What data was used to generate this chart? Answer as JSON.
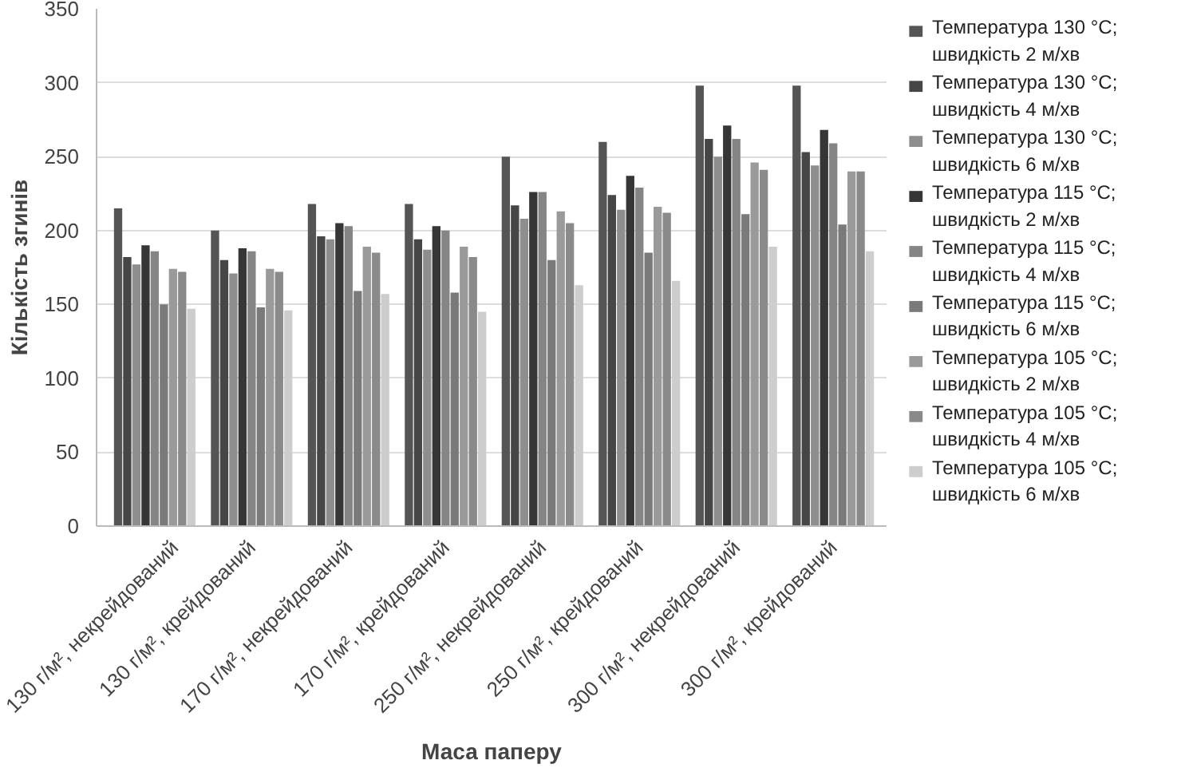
{
  "chart_data": {
    "type": "bar",
    "xlabel": "Маса паперу",
    "ylabel": "Кількість згинів",
    "categories": [
      "130 г/м², некрейдований",
      "130 г/м², крейдований",
      "170 г/м², некрейдований",
      "170 г/м², крейдований",
      "250 г/м², некрейдований",
      "250 г/м², крейдований",
      "300 г/м², некрейдований",
      "300 г/м², крейдований"
    ],
    "series": [
      {
        "name": "Температура 130 °C;\nшвидкість  2 м/хв",
        "color": "#555555",
        "values": [
          215,
          200,
          218,
          218,
          250,
          260,
          298,
          298
        ]
      },
      {
        "name": "Температура 130 °C;\nшвидкість  4 м/хв",
        "color": "#464646",
        "values": [
          182,
          180,
          196,
          194,
          217,
          224,
          262,
          253
        ]
      },
      {
        "name": "Температура 130 °C;\nшвидкість 6 м/хв",
        "color": "#8e8e8e",
        "values": [
          177,
          171,
          194,
          187,
          208,
          214,
          250,
          244
        ]
      },
      {
        "name": "Температура 115 °C;\nшвидкість  2 м/хв",
        "color": "#363636",
        "values": [
          190,
          188,
          205,
          203,
          226,
          237,
          271,
          268
        ]
      },
      {
        "name": "Температура 115 °C;\nшвидкість  4 м/хв",
        "color": "#858585",
        "values": [
          186,
          186,
          203,
          200,
          226,
          229,
          262,
          259
        ]
      },
      {
        "name": "Температура 115 °C;\nшвидкість 6 м/хв",
        "color": "#7a7a7a",
        "values": [
          150,
          148,
          159,
          158,
          180,
          185,
          211,
          204
        ]
      },
      {
        "name": "Температура 105 °C;\nшвидкість  2 м/хв",
        "color": "#9a9a9a",
        "values": [
          174,
          174,
          189,
          189,
          213,
          216,
          246,
          240
        ]
      },
      {
        "name": "Температура 105 °C;\nшвидкість  4 м/хв",
        "color": "#8a8a8a",
        "values": [
          172,
          172,
          185,
          182,
          205,
          212,
          241,
          240
        ]
      },
      {
        "name": "Температура 105 °C;\nшвидкість 6 м/хв",
        "color": "#cdcdcd",
        "values": [
          147,
          146,
          157,
          145,
          163,
          166,
          189,
          186
        ]
      }
    ],
    "ylim": [
      0,
      350
    ],
    "yticks": [
      0,
      50,
      100,
      150,
      200,
      250,
      300,
      350
    ],
    "grid": "y",
    "legend": "right"
  }
}
